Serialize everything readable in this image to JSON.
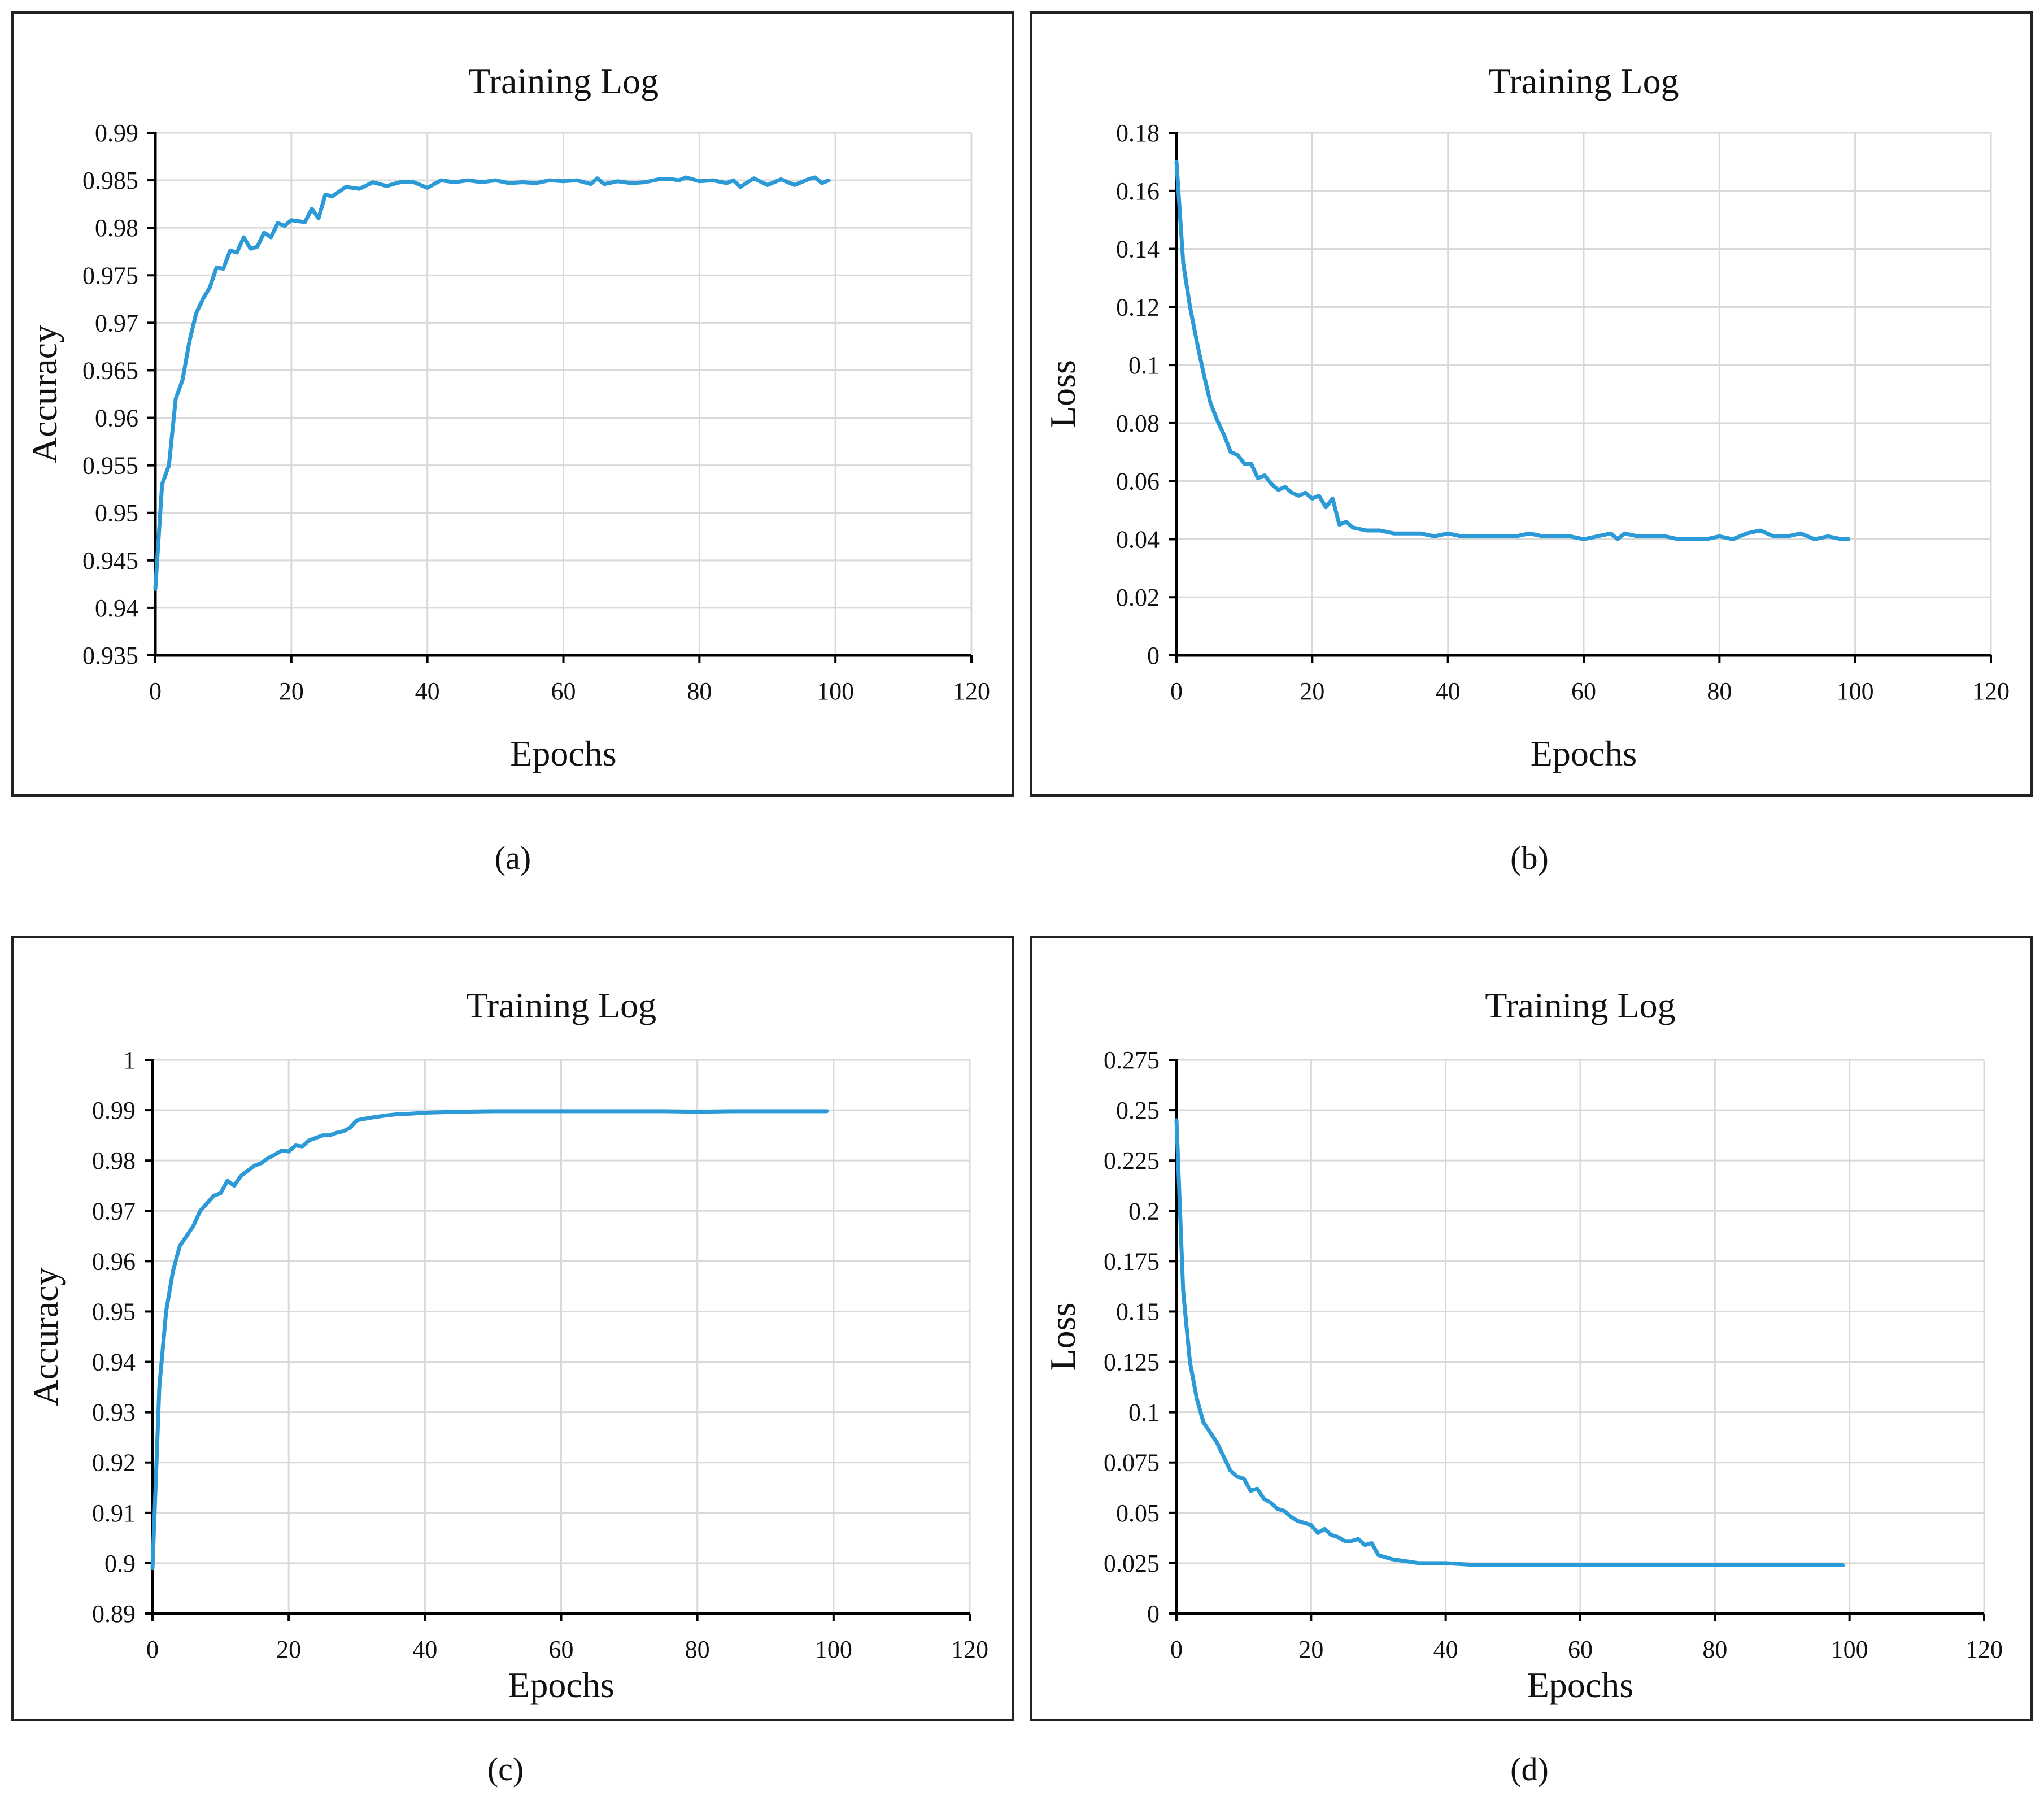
{
  "chart_data": [
    {
      "id": "a",
      "type": "line",
      "title": "Training Log",
      "xlabel": "Epochs",
      "ylabel": "Accuracy",
      "caption": "(a)",
      "xlim": [
        0,
        120
      ],
      "ylim": [
        0.935,
        0.99
      ],
      "xticks": [
        0,
        20,
        40,
        60,
        80,
        100,
        120
      ],
      "yticks": [
        0.935,
        0.94,
        0.945,
        0.95,
        0.955,
        0.96,
        0.965,
        0.97,
        0.975,
        0.98,
        0.985,
        0.99
      ],
      "xtick_labels": [
        "0",
        "20",
        "40",
        "60",
        "80",
        "100",
        "120"
      ],
      "ytick_labels": [
        "0.935",
        "0.94",
        "0.945",
        "0.95",
        "0.955",
        "0.96",
        "0.965",
        "0.97",
        "0.975",
        "0.98",
        "0.985",
        "0.99"
      ],
      "grid": true,
      "color": "#2b9ad6",
      "series": [
        {
          "name": "accuracy",
          "x": [
            0,
            1,
            2,
            3,
            4,
            5,
            6,
            7,
            8,
            9,
            10,
            11,
            12,
            13,
            14,
            15,
            16,
            17,
            18,
            19,
            20,
            22,
            23,
            24,
            25,
            26,
            28,
            30,
            32,
            34,
            36,
            38,
            40,
            42,
            44,
            46,
            48,
            50,
            52,
            54,
            56,
            58,
            60,
            62,
            64,
            65,
            66,
            68,
            70,
            72,
            74,
            76,
            77,
            78,
            80,
            82,
            84,
            85,
            86,
            88,
            90,
            92,
            94,
            96,
            97,
            98,
            99
          ],
          "y": [
            0.942,
            0.953,
            0.955,
            0.962,
            0.964,
            0.968,
            0.971,
            0.9725,
            0.9737,
            0.9758,
            0.9757,
            0.9776,
            0.9774,
            0.979,
            0.9778,
            0.978,
            0.9795,
            0.979,
            0.9805,
            0.9802,
            0.9808,
            0.9806,
            0.982,
            0.981,
            0.9835,
            0.9833,
            0.9843,
            0.9841,
            0.9848,
            0.9844,
            0.9848,
            0.9848,
            0.9842,
            0.985,
            0.9848,
            0.985,
            0.9848,
            0.985,
            0.9847,
            0.9848,
            0.9847,
            0.985,
            0.9849,
            0.985,
            0.9846,
            0.9852,
            0.9846,
            0.9849,
            0.9847,
            0.9848,
            0.9851,
            0.9851,
            0.985,
            0.9853,
            0.9849,
            0.985,
            0.9847,
            0.985,
            0.9843,
            0.9852,
            0.9845,
            0.9851,
            0.9845,
            0.9851,
            0.9853,
            0.9847,
            0.985
          ]
        }
      ]
    },
    {
      "id": "b",
      "type": "line",
      "title": "Training Log",
      "xlabel": "Epochs",
      "ylabel": "Loss",
      "caption": "(b)",
      "xlim": [
        0,
        120
      ],
      "ylim": [
        0,
        0.18
      ],
      "xticks": [
        0,
        20,
        40,
        60,
        80,
        100,
        120
      ],
      "yticks": [
        0,
        0.02,
        0.04,
        0.06,
        0.08,
        0.1,
        0.12,
        0.14,
        0.16,
        0.18
      ],
      "xtick_labels": [
        "0",
        "20",
        "40",
        "60",
        "80",
        "100",
        "120"
      ],
      "ytick_labels": [
        "0",
        "0.02",
        "0.04",
        "0.06",
        "0.08",
        "0.1",
        "0.12",
        "0.14",
        "0.16",
        "0.18"
      ],
      "grid": true,
      "color": "#2b9ad6",
      "series": [
        {
          "name": "loss",
          "x": [
            0,
            1,
            2,
            3,
            4,
            5,
            6,
            7,
            8,
            9,
            10,
            11,
            12,
            13,
            14,
            15,
            16,
            17,
            18,
            19,
            20,
            21,
            22,
            23,
            24,
            25,
            26,
            28,
            30,
            32,
            34,
            36,
            38,
            40,
            42,
            44,
            46,
            48,
            50,
            52,
            54,
            56,
            58,
            60,
            62,
            64,
            65,
            66,
            68,
            70,
            72,
            74,
            76,
            78,
            80,
            82,
            84,
            86,
            88,
            90,
            92,
            94,
            96,
            98,
            99
          ],
          "y": [
            0.17,
            0.135,
            0.12,
            0.108,
            0.097,
            0.087,
            0.081,
            0.076,
            0.07,
            0.069,
            0.066,
            0.066,
            0.061,
            0.062,
            0.059,
            0.057,
            0.058,
            0.056,
            0.055,
            0.056,
            0.054,
            0.055,
            0.051,
            0.054,
            0.045,
            0.046,
            0.044,
            0.043,
            0.043,
            0.042,
            0.042,
            0.042,
            0.041,
            0.042,
            0.041,
            0.041,
            0.041,
            0.041,
            0.041,
            0.042,
            0.041,
            0.041,
            0.041,
            0.04,
            0.041,
            0.042,
            0.04,
            0.042,
            0.041,
            0.041,
            0.041,
            0.04,
            0.04,
            0.04,
            0.041,
            0.04,
            0.042,
            0.043,
            0.041,
            0.041,
            0.042,
            0.04,
            0.041,
            0.04,
            0.04
          ]
        }
      ]
    },
    {
      "id": "c",
      "type": "line",
      "title": "Training Log",
      "xlabel": "Epochs",
      "ylabel": "Accuracy",
      "caption": "(c)",
      "xlim": [
        0,
        120
      ],
      "ylim": [
        0.89,
        1
      ],
      "xticks": [
        0,
        20,
        40,
        60,
        80,
        100,
        120
      ],
      "yticks": [
        0.89,
        0.9,
        0.91,
        0.92,
        0.93,
        0.94,
        0.95,
        0.96,
        0.97,
        0.98,
        0.99,
        1
      ],
      "xtick_labels": [
        "0",
        "20",
        "40",
        "60",
        "80",
        "100",
        "120"
      ],
      "ytick_labels": [
        "0.89",
        "0.9",
        "0.91",
        "0.92",
        "0.93",
        "0.94",
        "0.95",
        "0.96",
        "0.97",
        "0.98",
        "0.99",
        "1"
      ],
      "grid": true,
      "color": "#2b9ad6",
      "series": [
        {
          "name": "accuracy",
          "x": [
            0,
            1,
            2,
            3,
            4,
            5,
            6,
            7,
            8,
            9,
            10,
            11,
            12,
            13,
            14,
            15,
            16,
            17,
            18,
            19,
            20,
            21,
            22,
            23,
            24,
            25,
            26,
            27,
            28,
            29,
            30,
            32,
            34,
            36,
            38,
            40,
            45,
            50,
            55,
            60,
            65,
            70,
            75,
            80,
            85,
            90,
            95,
            99
          ],
          "y": [
            0.899,
            0.935,
            0.95,
            0.958,
            0.963,
            0.965,
            0.967,
            0.97,
            0.9715,
            0.973,
            0.9735,
            0.976,
            0.975,
            0.977,
            0.978,
            0.979,
            0.9795,
            0.9805,
            0.9812,
            0.982,
            0.9818,
            0.983,
            0.9828,
            0.984,
            0.9845,
            0.985,
            0.985,
            0.9855,
            0.9858,
            0.9865,
            0.988,
            0.9885,
            0.9889,
            0.9892,
            0.9893,
            0.9895,
            0.9897,
            0.9898,
            0.9898,
            0.9898,
            0.9898,
            0.9898,
            0.9898,
            0.9897,
            0.9898,
            0.9898,
            0.9898,
            0.9898
          ]
        }
      ]
    },
    {
      "id": "d",
      "type": "line",
      "title": "Training Log",
      "xlabel": "Epochs",
      "ylabel": "Loss",
      "caption": "(d)",
      "xlim": [
        0,
        120
      ],
      "ylim": [
        0,
        0.275
      ],
      "xticks": [
        0,
        20,
        40,
        60,
        80,
        100,
        120
      ],
      "yticks": [
        0,
        0.025,
        0.05,
        0.075,
        0.1,
        0.125,
        0.15,
        0.175,
        0.2,
        0.225,
        0.25,
        0.275
      ],
      "xtick_labels": [
        "0",
        "20",
        "40",
        "60",
        "80",
        "100",
        "120"
      ],
      "ytick_labels": [
        "0",
        "0.025",
        "0.05",
        "0.075",
        "0.1",
        "0.125",
        "0.15",
        "0.175",
        "0.2",
        "0.225",
        "0.25",
        "0.275"
      ],
      "grid": true,
      "color": "#2b9ad6",
      "series": [
        {
          "name": "loss",
          "x": [
            0,
            1,
            2,
            3,
            4,
            5,
            6,
            7,
            8,
            9,
            10,
            11,
            12,
            13,
            14,
            15,
            16,
            17,
            18,
            19,
            20,
            21,
            22,
            23,
            24,
            25,
            26,
            27,
            28,
            29,
            30,
            32,
            34,
            36,
            38,
            40,
            45,
            50,
            55,
            60,
            65,
            70,
            75,
            80,
            85,
            90,
            95,
            99
          ],
          "y": [
            0.245,
            0.16,
            0.125,
            0.107,
            0.095,
            0.09,
            0.085,
            0.078,
            0.071,
            0.068,
            0.067,
            0.061,
            0.062,
            0.057,
            0.055,
            0.052,
            0.051,
            0.048,
            0.046,
            0.045,
            0.044,
            0.04,
            0.042,
            0.039,
            0.038,
            0.036,
            0.036,
            0.037,
            0.034,
            0.035,
            0.029,
            0.027,
            0.026,
            0.025,
            0.025,
            0.025,
            0.024,
            0.024,
            0.024,
            0.024,
            0.024,
            0.024,
            0.024,
            0.024,
            0.024,
            0.024,
            0.024,
            0.024
          ]
        }
      ]
    }
  ]
}
